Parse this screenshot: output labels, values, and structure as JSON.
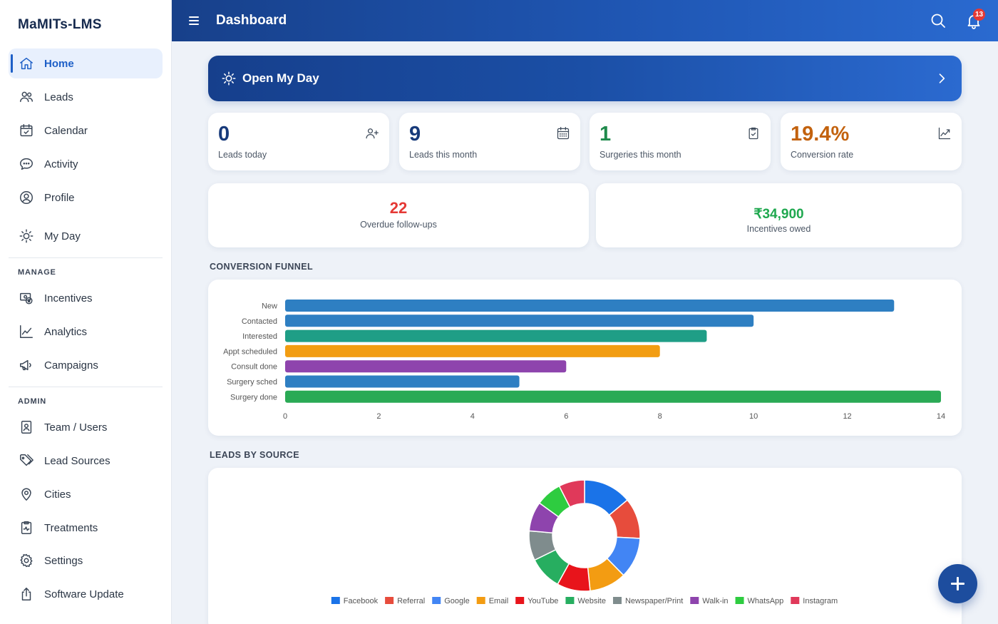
{
  "app": {
    "name": "MaMITs-LMS"
  },
  "sidebar": {
    "items": [
      {
        "label": "Home",
        "icon": "home-icon",
        "active": true
      },
      {
        "label": "Leads",
        "icon": "users-icon"
      },
      {
        "label": "Calendar",
        "icon": "calendar-check-icon"
      },
      {
        "label": "Activity",
        "icon": "chat-bubble-icon"
      },
      {
        "label": "Profile",
        "icon": "user-circle-icon"
      },
      {
        "label": "My Day",
        "icon": "sun-icon"
      }
    ],
    "manage_title": "MANAGE",
    "manage_items": [
      {
        "label": "Incentives",
        "icon": "money-icon"
      },
      {
        "label": "Analytics",
        "icon": "line-chart-icon"
      },
      {
        "label": "Campaigns",
        "icon": "megaphone-icon"
      }
    ],
    "admin_title": "ADMIN",
    "admin_items": [
      {
        "label": "Team / Users",
        "icon": "id-badge-icon"
      },
      {
        "label": "Lead Sources",
        "icon": "tags-icon"
      },
      {
        "label": "Cities",
        "icon": "map-pin-icon"
      },
      {
        "label": "Treatments",
        "icon": "clipboard-pulse-icon"
      },
      {
        "label": "Settings",
        "icon": "gear-icon"
      },
      {
        "label": "Software Update",
        "icon": "upload-icon"
      }
    ]
  },
  "header": {
    "title": "Dashboard",
    "notification_count": "13"
  },
  "myday": {
    "label": "Open My Day"
  },
  "stats": [
    {
      "value": "0",
      "label": "Leads today",
      "color": "#173a7a",
      "icon": "user-plus-icon"
    },
    {
      "value": "9",
      "label": "Leads this month",
      "color": "#173a7a",
      "icon": "calendar-grid-icon"
    },
    {
      "value": "1",
      "label": "Surgeries this month",
      "color": "#1f8a4c",
      "icon": "clipboard-check-icon"
    },
    {
      "value": "19.4%",
      "label": "Conversion rate",
      "color": "#c3620e",
      "icon": "trend-up-icon"
    }
  ],
  "overdue": {
    "value": "22",
    "label": "Overdue follow-ups",
    "color": "#e53935"
  },
  "incentives": {
    "value": "₹34,900",
    "label": "Incentives owed",
    "color": "#1fa84f"
  },
  "sections": {
    "funnel_title": "CONVERSION FUNNEL",
    "source_title": "LEADS BY SOURCE"
  },
  "chart_data": [
    {
      "type": "bar",
      "orientation": "horizontal",
      "categories": [
        "New",
        "Contacted",
        "Interested",
        "Appt scheduled",
        "Consult done",
        "Surgery sched",
        "Surgery done"
      ],
      "values": [
        13,
        10,
        9,
        8,
        6,
        5,
        14
      ],
      "colors": [
        "#2e7fc2",
        "#2e7fc2",
        "#1f9e86",
        "#f29d12",
        "#8e44ad",
        "#2e7fc2",
        "#2aaa55"
      ],
      "xlim": [
        0,
        14
      ],
      "xticks": [
        0,
        2,
        4,
        6,
        8,
        10,
        12,
        14
      ],
      "grid": false
    },
    {
      "type": "pie",
      "donut": true,
      "categories": [
        "Facebook",
        "Referral",
        "Google",
        "Email",
        "YouTube",
        "Website",
        "Newspaper/Print",
        "Walk-in",
        "WhatsApp",
        "Instagram"
      ],
      "values": [
        13,
        11,
        11,
        10,
        9,
        9,
        8,
        8,
        7,
        7
      ],
      "colors": [
        "#1a73e8",
        "#e74c3c",
        "#4285f4",
        "#f39c12",
        "#e8141b",
        "#27ae60",
        "#7f8c8d",
        "#8e44ad",
        "#2ecc40",
        "#e0395a"
      ],
      "legend": "bottom"
    }
  ]
}
